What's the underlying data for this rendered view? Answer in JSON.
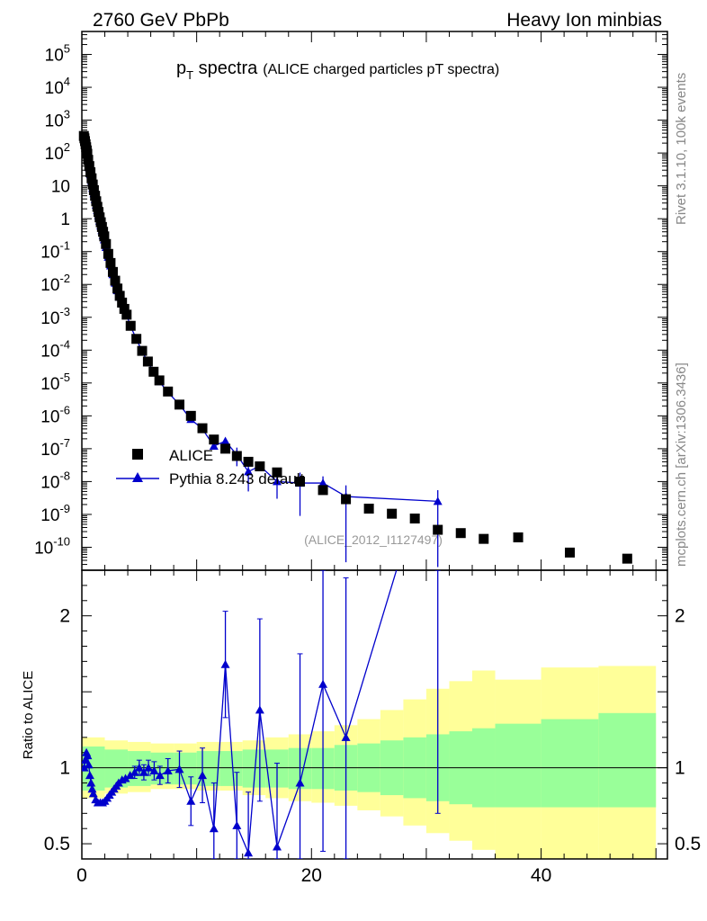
{
  "header": {
    "left": "2760 GeV PbPb",
    "right": "Heavy Ion minbias"
  },
  "title": {
    "main": "p",
    "sub": "T",
    "rest": " spectra",
    "paren": "(ALICE charged particles pT spectra)"
  },
  "side_labels": {
    "rivet": "Rivet 3.1.10,  100k events",
    "mcplots": "mcplots.cern.ch [arXiv:1306.3436]"
  },
  "watermark": "(ALICE_2012_I1127497)",
  "ratio_ylabel": "Ratio to ALICE",
  "legend": {
    "data_label": "ALICE",
    "mc_label": "Pythia 8.243 default"
  },
  "colors": {
    "data": "#000000",
    "mc": "#0000cc",
    "band_inner": "#99ff99",
    "band_outer": "#ffff99"
  },
  "chart_data": [
    {
      "type": "scatter",
      "panel": "main",
      "yscale": "log",
      "xlim": [
        0,
        51
      ],
      "ylim": [
        2e-11,
        500000.0
      ],
      "yticks": [
        "10^5",
        "10^4",
        "10^3",
        "10^2",
        "10",
        "1",
        "10^-1",
        "10^-2",
        "10^-3",
        "10^-4",
        "10^-5",
        "10^-6",
        "10^-7",
        "10^-8",
        "10^-9",
        "10^-10"
      ],
      "series": [
        {
          "name": "ALICE",
          "x": [
            0.175,
            0.225,
            0.275,
            0.325,
            0.375,
            0.425,
            0.475,
            0.55,
            0.65,
            0.75,
            0.85,
            0.95,
            1.05,
            1.15,
            1.25,
            1.35,
            1.45,
            1.55,
            1.65,
            1.75,
            1.85,
            1.95,
            2.1,
            2.3,
            2.5,
            2.7,
            2.9,
            3.1,
            3.3,
            3.5,
            3.7,
            3.9,
            4.25,
            4.75,
            5.25,
            5.75,
            6.25,
            6.75,
            7.5,
            8.5,
            9.5,
            10.5,
            11.5,
            12.5,
            13.5,
            14.5,
            15.5,
            17.0,
            19.0,
            21.0,
            23.0,
            25.0,
            27.0,
            29.0,
            31.0,
            33.0,
            35.0,
            38.0,
            42.5,
            47.5
          ],
          "y": [
            330,
            280,
            230,
            185,
            150,
            120,
            95,
            62,
            40,
            26,
            17,
            11,
            7.4,
            5.0,
            3.4,
            2.3,
            1.6,
            1.1,
            0.78,
            0.56,
            0.4,
            0.29,
            0.17,
            0.085,
            0.045,
            0.024,
            0.013,
            0.0075,
            0.0045,
            0.0028,
            0.0018,
            0.0012,
            0.00055,
            0.00022,
            9.5e-05,
            4.5e-05,
            2.2e-05,
            1.2e-05,
            5.5e-06,
            2.2e-06,
            1e-06,
            4.2e-07,
            1.9e-07,
            1e-07,
            6e-08,
            4e-08,
            2.9e-08,
            1.9e-08,
            1e-08,
            5.5e-09,
            2.9e-09,
            1.5e-09,
            1.05e-09,
            7.5e-10,
            3.4e-10,
            2.7e-10,
            1.8e-10,
            2e-10,
            6.9e-11,
            4.5e-11
          ]
        },
        {
          "name": "Pythia 8.243 default",
          "x": [
            0.175,
            0.225,
            0.275,
            0.325,
            0.375,
            0.425,
            0.475,
            0.55,
            0.65,
            0.75,
            0.85,
            0.95,
            1.05,
            1.15,
            1.25,
            1.35,
            1.45,
            1.55,
            1.65,
            1.75,
            1.85,
            1.95,
            2.1,
            2.3,
            2.5,
            2.7,
            2.9,
            3.1,
            3.3,
            3.5,
            3.7,
            3.9,
            4.25,
            4.75,
            5.25,
            5.75,
            6.25,
            6.75,
            7.5,
            8.5,
            9.5,
            10.5,
            11.5,
            12.5,
            13.5,
            14.5,
            15.5,
            17.0,
            19.0,
            21.0,
            23.0,
            31.0
          ],
          "y": [
            310,
            280,
            250,
            200,
            160,
            125,
            95,
            60,
            36,
            22,
            14,
            8.5,
            5.8,
            3.9,
            2.6,
            1.8,
            1.25,
            0.86,
            0.61,
            0.44,
            0.31,
            0.23,
            0.135,
            0.068,
            0.037,
            0.02,
            0.011,
            0.0065,
            0.0041,
            0.0026,
            0.0017,
            0.0012,
            0.00052,
            0.00022,
            9e-05,
            4.4e-05,
            2.1e-05,
            1.1e-05,
            5.2e-06,
            2.2e-06,
            7.8e-07,
            4e-07,
            1.2e-07,
            1.7e-07,
            6.5e-08,
            2e-08,
            3e-08,
            1e-08,
            9e-09,
            9e-09,
            3.5e-09,
            2.5e-09
          ]
        }
      ]
    },
    {
      "type": "line",
      "panel": "ratio",
      "xlim": [
        0,
        51
      ],
      "ylim": [
        0.4,
        2.3
      ],
      "xticks": [
        0,
        20,
        40
      ],
      "yticks": [
        0.5,
        1,
        2
      ],
      "ylabel": "Ratio to ALICE",
      "band_edges": [
        0,
        2,
        4,
        6,
        8,
        10,
        12,
        14,
        16,
        18,
        20,
        22,
        24,
        26,
        28,
        30,
        32,
        34,
        36,
        40,
        45,
        50
      ],
      "band_inner_low": [
        0.85,
        0.87,
        0.88,
        0.89,
        0.89,
        0.88,
        0.88,
        0.87,
        0.87,
        0.86,
        0.86,
        0.85,
        0.84,
        0.82,
        0.8,
        0.78,
        0.76,
        0.74,
        0.74,
        0.74,
        0.74
      ],
      "band_inner_high": [
        1.14,
        1.12,
        1.11,
        1.1,
        1.1,
        1.11,
        1.11,
        1.12,
        1.12,
        1.13,
        1.13,
        1.15,
        1.16,
        1.18,
        1.2,
        1.22,
        1.24,
        1.26,
        1.29,
        1.32,
        1.36
      ],
      "band_outer_low": [
        0.8,
        0.83,
        0.84,
        0.86,
        0.86,
        0.85,
        0.85,
        0.82,
        0.8,
        0.78,
        0.77,
        0.75,
        0.72,
        0.68,
        0.62,
        0.57,
        0.52,
        0.46,
        0.4,
        0.36,
        0.34
      ],
      "band_outer_high": [
        1.2,
        1.18,
        1.17,
        1.16,
        1.16,
        1.17,
        1.17,
        1.18,
        1.2,
        1.22,
        1.24,
        1.28,
        1.32,
        1.38,
        1.45,
        1.52,
        1.57,
        1.64,
        1.58,
        1.66,
        1.67
      ],
      "series": [
        {
          "name": "Pythia 8.243 default",
          "x": [
            0.2,
            0.3,
            0.4,
            0.5,
            0.6,
            0.7,
            0.8,
            0.9,
            1.0,
            1.2,
            1.4,
            1.6,
            1.8,
            2.0,
            2.2,
            2.4,
            2.6,
            2.8,
            3.0,
            3.2,
            3.5,
            3.8,
            4.2,
            4.6,
            5.0,
            5.4,
            5.8,
            6.3,
            6.8,
            7.5,
            8.5,
            9.5,
            10.5,
            11.5,
            12.5,
            13.5,
            14.5,
            15.5,
            17.0,
            19.0,
            21.0,
            23.0,
            31.0
          ],
          "y": [
            1.0,
            1.05,
            1.1,
            1.08,
            1.02,
            0.95,
            0.9,
            0.86,
            0.83,
            0.79,
            0.77,
            0.77,
            0.77,
            0.78,
            0.8,
            0.82,
            0.84,
            0.86,
            0.88,
            0.9,
            0.92,
            0.93,
            0.95,
            0.97,
            1.0,
            0.97,
            1.0,
            0.98,
            0.95,
            0.98,
            0.99,
            0.78,
            0.95,
            0.6,
            1.68,
            0.62,
            0.44,
            1.38,
            0.48,
            0.9,
            1.55,
            1.2,
            3.2
          ],
          "err": [
            0.02,
            0.02,
            0.02,
            0.02,
            0.02,
            0.02,
            0.02,
            0.02,
            0.02,
            0.02,
            0.02,
            0.02,
            0.02,
            0.02,
            0.02,
            0.02,
            0.02,
            0.02,
            0.02,
            0.02,
            0.03,
            0.03,
            0.03,
            0.04,
            0.05,
            0.05,
            0.05,
            0.06,
            0.06,
            0.08,
            0.12,
            0.16,
            0.18,
            0.3,
            0.35,
            0.35,
            0.4,
            0.6,
            0.55,
            0.85,
            1.1,
            1.05,
            2.5
          ]
        }
      ]
    }
  ]
}
